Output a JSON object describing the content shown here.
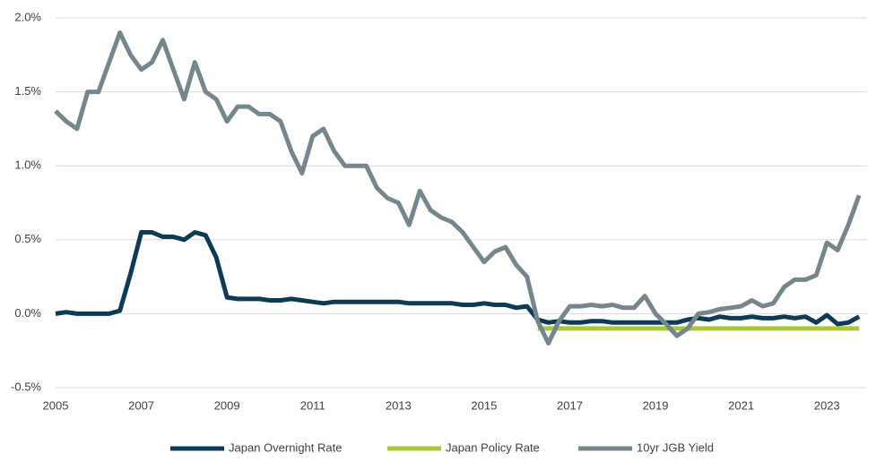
{
  "chart_data": {
    "type": "line",
    "x": [
      2005,
      2005.25,
      2005.5,
      2005.75,
      2006,
      2006.25,
      2006.5,
      2006.75,
      2007,
      2007.25,
      2007.5,
      2007.75,
      2008,
      2008.25,
      2008.5,
      2008.75,
      2009,
      2009.25,
      2009.5,
      2009.75,
      2010,
      2010.25,
      2010.5,
      2010.75,
      2011,
      2011.25,
      2011.5,
      2011.75,
      2012,
      2012.25,
      2012.5,
      2012.75,
      2013,
      2013.25,
      2013.5,
      2013.75,
      2014,
      2014.25,
      2014.5,
      2014.75,
      2015,
      2015.25,
      2015.5,
      2015.75,
      2016,
      2016.25,
      2016.5,
      2016.75,
      2017,
      2017.25,
      2017.5,
      2017.75,
      2018,
      2018.25,
      2018.5,
      2018.75,
      2019,
      2019.25,
      2019.5,
      2019.75,
      2020,
      2020.25,
      2020.5,
      2020.75,
      2021,
      2021.25,
      2021.5,
      2021.75,
      2022,
      2022.25,
      2022.5,
      2022.75,
      2023,
      2023.25,
      2023.5,
      2023.75
    ],
    "series": [
      {
        "name": "Japan Overnight Rate",
        "color": "#0d3b55",
        "values": [
          0.0,
          0.01,
          0.0,
          0.0,
          0.0,
          0.0,
          0.02,
          0.27,
          0.55,
          0.55,
          0.52,
          0.52,
          0.5,
          0.55,
          0.53,
          0.38,
          0.11,
          0.1,
          0.1,
          0.1,
          0.09,
          0.09,
          0.1,
          0.09,
          0.08,
          0.07,
          0.08,
          0.08,
          0.08,
          0.08,
          0.08,
          0.08,
          0.08,
          0.07,
          0.07,
          0.07,
          0.07,
          0.07,
          0.06,
          0.06,
          0.07,
          0.06,
          0.06,
          0.04,
          0.05,
          -0.04,
          -0.06,
          -0.05,
          -0.06,
          -0.06,
          -0.05,
          -0.05,
          -0.06,
          -0.06,
          -0.06,
          -0.06,
          -0.06,
          -0.06,
          -0.06,
          -0.04,
          -0.03,
          -0.04,
          -0.02,
          -0.03,
          -0.03,
          -0.02,
          -0.03,
          -0.03,
          -0.02,
          -0.03,
          -0.02,
          -0.06,
          -0.01,
          -0.07,
          -0.06,
          -0.02
        ]
      },
      {
        "name": "Japan Policy Rate",
        "color": "#a8c73a",
        "values": [
          null,
          null,
          null,
          null,
          null,
          null,
          null,
          null,
          null,
          null,
          null,
          null,
          null,
          null,
          null,
          null,
          null,
          null,
          null,
          null,
          null,
          null,
          null,
          null,
          null,
          null,
          null,
          null,
          null,
          null,
          null,
          null,
          null,
          null,
          null,
          null,
          null,
          null,
          null,
          null,
          null,
          null,
          null,
          null,
          null,
          -0.1,
          -0.1,
          -0.1,
          -0.1,
          -0.1,
          -0.1,
          -0.1,
          -0.1,
          -0.1,
          -0.1,
          -0.1,
          -0.1,
          -0.1,
          -0.1,
          -0.1,
          -0.1,
          -0.1,
          -0.1,
          -0.1,
          -0.1,
          -0.1,
          -0.1,
          -0.1,
          -0.1,
          -0.1,
          -0.1,
          -0.1,
          -0.1,
          -0.1,
          -0.1,
          -0.1
        ]
      },
      {
        "name": "10yr JGB Yield",
        "color": "#75878c",
        "values": [
          1.37,
          1.3,
          1.25,
          1.5,
          1.5,
          1.7,
          1.9,
          1.75,
          1.65,
          1.7,
          1.85,
          1.65,
          1.45,
          1.7,
          1.5,
          1.45,
          1.3,
          1.4,
          1.4,
          1.35,
          1.35,
          1.3,
          1.1,
          0.95,
          1.2,
          1.25,
          1.1,
          1.0,
          1.0,
          1.0,
          0.85,
          0.78,
          0.75,
          0.6,
          0.83,
          0.7,
          0.65,
          0.62,
          0.55,
          0.45,
          0.35,
          0.42,
          0.45,
          0.33,
          0.25,
          -0.05,
          -0.2,
          -0.05,
          0.05,
          0.05,
          0.06,
          0.05,
          0.06,
          0.04,
          0.04,
          0.12,
          0.0,
          -0.07,
          -0.15,
          -0.1,
          0.0,
          0.01,
          0.03,
          0.04,
          0.05,
          0.09,
          0.05,
          0.07,
          0.18,
          0.23,
          0.23,
          0.26,
          0.48,
          0.43,
          0.6,
          0.8
        ]
      }
    ],
    "xlim": [
      2005,
      2024
    ],
    "xticks": [
      2005,
      2007,
      2009,
      2011,
      2013,
      2015,
      2017,
      2019,
      2021,
      2023
    ],
    "ylim": [
      -0.5,
      2.0
    ],
    "yticks": [
      {
        "value": -0.5,
        "label": "-0.5%"
      },
      {
        "value": 0,
        "label": "0.0%"
      },
      {
        "value": 0.5,
        "label": "0.5%"
      },
      {
        "value": 1,
        "label": "1.0%"
      },
      {
        "value": 1.5,
        "label": "1.5%"
      },
      {
        "value": 2,
        "label": "2.0%"
      }
    ],
    "grid": true,
    "legend": "bottom"
  }
}
